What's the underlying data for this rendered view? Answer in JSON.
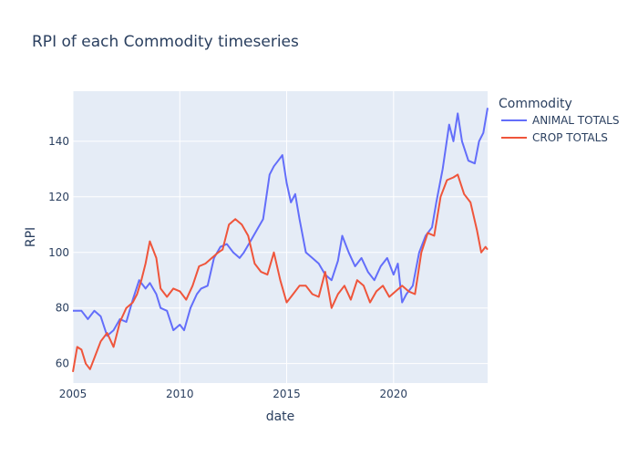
{
  "chart_data": {
    "type": "line",
    "title": "RPI of each Commodity timeseries",
    "xlabel": "date",
    "ylabel": "RPI",
    "xlim": [
      2005.0,
      2024.4
    ],
    "ylim": [
      53,
      158
    ],
    "x_ticks": [
      2005,
      2010,
      2015,
      2020
    ],
    "y_ticks": [
      60,
      80,
      100,
      120,
      140
    ],
    "grid": true,
    "legend_title": "Commodity",
    "legend_position": "right",
    "series": [
      {
        "name": "ANIMAL TOTALS",
        "color": "#636efa",
        "points": [
          [
            2005.0,
            79
          ],
          [
            2005.4,
            79
          ],
          [
            2005.7,
            76
          ],
          [
            2006.0,
            79
          ],
          [
            2006.3,
            77
          ],
          [
            2006.6,
            70
          ],
          [
            2006.9,
            72
          ],
          [
            2007.2,
            76
          ],
          [
            2007.5,
            75
          ],
          [
            2007.8,
            83
          ],
          [
            2008.1,
            90
          ],
          [
            2008.4,
            87
          ],
          [
            2008.6,
            89
          ],
          [
            2008.9,
            85
          ],
          [
            2009.1,
            80
          ],
          [
            2009.4,
            79
          ],
          [
            2009.7,
            72
          ],
          [
            2010.0,
            74
          ],
          [
            2010.2,
            72
          ],
          [
            2010.5,
            80
          ],
          [
            2010.8,
            85
          ],
          [
            2011.0,
            87
          ],
          [
            2011.3,
            88
          ],
          [
            2011.6,
            98
          ],
          [
            2011.9,
            102
          ],
          [
            2012.2,
            103
          ],
          [
            2012.5,
            100
          ],
          [
            2012.8,
            98
          ],
          [
            2013.0,
            100
          ],
          [
            2013.3,
            104
          ],
          [
            2013.6,
            108
          ],
          [
            2013.9,
            112
          ],
          [
            2014.2,
            128
          ],
          [
            2014.4,
            131
          ],
          [
            2014.6,
            133
          ],
          [
            2014.8,
            135
          ],
          [
            2015.0,
            125
          ],
          [
            2015.2,
            118
          ],
          [
            2015.4,
            121
          ],
          [
            2015.6,
            112
          ],
          [
            2015.9,
            100
          ],
          [
            2016.2,
            98
          ],
          [
            2016.5,
            96
          ],
          [
            2016.8,
            92
          ],
          [
            2017.1,
            90
          ],
          [
            2017.4,
            97
          ],
          [
            2017.6,
            106
          ],
          [
            2017.9,
            100
          ],
          [
            2018.2,
            95
          ],
          [
            2018.5,
            98
          ],
          [
            2018.8,
            93
          ],
          [
            2019.1,
            90
          ],
          [
            2019.4,
            95
          ],
          [
            2019.7,
            98
          ],
          [
            2020.0,
            92
          ],
          [
            2020.2,
            96
          ],
          [
            2020.4,
            82
          ],
          [
            2020.6,
            85
          ],
          [
            2020.9,
            88
          ],
          [
            2021.2,
            100
          ],
          [
            2021.5,
            106
          ],
          [
            2021.8,
            109
          ],
          [
            2022.0,
            118
          ],
          [
            2022.3,
            130
          ],
          [
            2022.6,
            146
          ],
          [
            2022.8,
            140
          ],
          [
            2023.0,
            150
          ],
          [
            2023.2,
            140
          ],
          [
            2023.5,
            133
          ],
          [
            2023.8,
            132
          ],
          [
            2024.0,
            140
          ],
          [
            2024.2,
            143
          ],
          [
            2024.4,
            152
          ]
        ]
      },
      {
        "name": "CROP TOTALS",
        "color": "#ef553b",
        "points": [
          [
            2005.0,
            57
          ],
          [
            2005.2,
            66
          ],
          [
            2005.4,
            65
          ],
          [
            2005.6,
            60
          ],
          [
            2005.8,
            58
          ],
          [
            2006.0,
            62
          ],
          [
            2006.3,
            68
          ],
          [
            2006.6,
            71
          ],
          [
            2006.9,
            66
          ],
          [
            2007.2,
            75
          ],
          [
            2007.5,
            80
          ],
          [
            2007.8,
            82
          ],
          [
            2008.0,
            85
          ],
          [
            2008.2,
            90
          ],
          [
            2008.4,
            96
          ],
          [
            2008.6,
            104
          ],
          [
            2008.9,
            98
          ],
          [
            2009.1,
            87
          ],
          [
            2009.4,
            84
          ],
          [
            2009.7,
            87
          ],
          [
            2010.0,
            86
          ],
          [
            2010.3,
            83
          ],
          [
            2010.6,
            88
          ],
          [
            2010.9,
            95
          ],
          [
            2011.2,
            96
          ],
          [
            2011.5,
            98
          ],
          [
            2011.8,
            100
          ],
          [
            2012.0,
            101
          ],
          [
            2012.3,
            110
          ],
          [
            2012.6,
            112
          ],
          [
            2012.9,
            110
          ],
          [
            2013.2,
            106
          ],
          [
            2013.5,
            96
          ],
          [
            2013.8,
            93
          ],
          [
            2014.1,
            92
          ],
          [
            2014.4,
            100
          ],
          [
            2014.7,
            90
          ],
          [
            2015.0,
            82
          ],
          [
            2015.3,
            85
          ],
          [
            2015.6,
            88
          ],
          [
            2015.9,
            88
          ],
          [
            2016.2,
            85
          ],
          [
            2016.5,
            84
          ],
          [
            2016.8,
            93
          ],
          [
            2017.1,
            80
          ],
          [
            2017.4,
            85
          ],
          [
            2017.7,
            88
          ],
          [
            2018.0,
            83
          ],
          [
            2018.3,
            90
          ],
          [
            2018.6,
            88
          ],
          [
            2018.9,
            82
          ],
          [
            2019.2,
            86
          ],
          [
            2019.5,
            88
          ],
          [
            2019.8,
            84
          ],
          [
            2020.1,
            86
          ],
          [
            2020.4,
            88
          ],
          [
            2020.7,
            86
          ],
          [
            2021.0,
            85
          ],
          [
            2021.3,
            100
          ],
          [
            2021.6,
            107
          ],
          [
            2021.9,
            106
          ],
          [
            2022.2,
            120
          ],
          [
            2022.5,
            126
          ],
          [
            2022.8,
            127
          ],
          [
            2023.0,
            128
          ],
          [
            2023.3,
            121
          ],
          [
            2023.6,
            118
          ],
          [
            2023.9,
            108
          ],
          [
            2024.1,
            100
          ],
          [
            2024.3,
            102
          ],
          [
            2024.4,
            101
          ]
        ]
      }
    ]
  }
}
